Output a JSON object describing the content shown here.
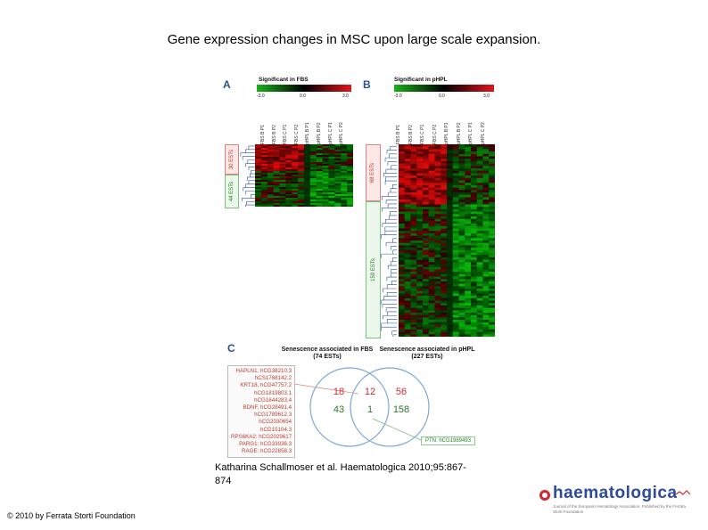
{
  "slide": {
    "title": "Gene expression changes in MSC upon large scale expansion.",
    "citation": "Katharina Schallmoser et al. Haematologica 2010;95:867-874",
    "copyright": "© 2010 by Ferrata Storti Foundation"
  },
  "figure": {
    "panelA": {
      "letter": "A",
      "scale_title": "Significant in FBS",
      "scale_ticks": [
        "-3.0",
        "0.0",
        "3.0"
      ],
      "columns": [
        "FBS B P1",
        "FBS B P2",
        "FBS C P1",
        "FBS C P2",
        "pHPL B P1",
        "pHPL B P2",
        "pHPL C P1",
        "pHPL C P2"
      ],
      "est_up": "30 ESTs",
      "est_down": "44 ESTs"
    },
    "panelB": {
      "letter": "B",
      "scale_title": "Significant in pHPL",
      "scale_ticks": [
        "-3.0",
        "0.0",
        "3.0"
      ],
      "columns": [
        "FBS B P1",
        "FBS B P2",
        "FBS C P1",
        "FBS C P2",
        "pHPL B P1",
        "pHPL B P2",
        "pHPL C P1",
        "pHPL C P2"
      ],
      "est_up": "68 ESTs",
      "est_down": "159 ESTs"
    },
    "panelC": {
      "letter": "C",
      "title_left": "Senescence associated in FBS (74 ESTs)",
      "title_right": "Senescence associated in pHPL (227 ESTs)",
      "genes": [
        "HAPLN1: hCG38210.3",
        "hCS1768142.2",
        "KRT18, hCG47757.2",
        "hCG1819803.1",
        "hCG1644283.4",
        "BDNF, hCG28491.4",
        "hCG1789612.3",
        "hCG2030654",
        "hCG15104.3",
        "RPS6KA2: hCG2029617",
        "PARG1: hCG33036.3",
        "RAGE: hCG22858.3"
      ],
      "counts": {
        "fbs_only_up": "18",
        "overlap_up": "12",
        "phpl_only_up": "56",
        "fbs_only_down": "43",
        "overlap_down": "1",
        "phpl_only_down": "158"
      },
      "overlap_gene": "PTN: hCG1989493"
    },
    "colors": {
      "up": "#e0141c",
      "down": "#18b418",
      "neutral": "#000000",
      "accent": "#2a4f93"
    }
  },
  "logo": {
    "name": "haematologica",
    "tagline": "Journal of the European Hematology Association. Published by the Ferrata Storti Foundation"
  }
}
